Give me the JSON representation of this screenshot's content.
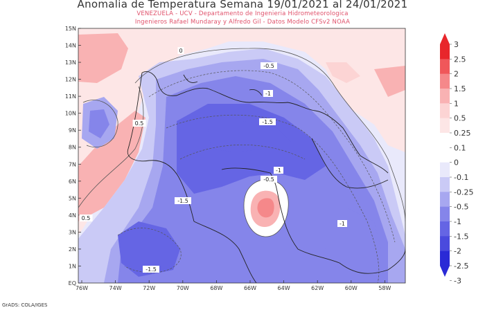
{
  "title": "Anomalia de Temperatura Semana 19/01/2021 al 24/01/2021",
  "subtitle1": "VENEZUELA - UCV - Departamento de Ingenieria Hidrometeorologica",
  "subtitle2": "Ingenieros Rafael Mundaray y Alfredo Gil - Datos Modelo CFSv2 NOAA",
  "credit": "GrADS: COLA/IGES",
  "lon_labels": [
    "76W",
    "74W",
    "72W",
    "70W",
    "68W",
    "66W",
    "64W",
    "62W",
    "60W",
    "58W"
  ],
  "lat_labels": [
    "15N",
    "14N",
    "13N",
    "12N",
    "11N",
    "10N",
    "9N",
    "8N",
    "7N",
    "6N",
    "5N",
    "4N",
    "3N",
    "2N",
    "1N",
    "EQ"
  ],
  "contour_labels": [
    "-0.5",
    "-1",
    "-1.5",
    "0.5",
    "-1",
    "-0.5",
    "-1.5",
    "-1",
    "0.5",
    "-1.5",
    "0"
  ],
  "colorbar": {
    "labels": [
      "3",
      "2.5",
      "2",
      "1.5",
      "1",
      "0.5",
      "0.25",
      "0.1",
      "0",
      "-0.1",
      "-0.25",
      "-0.5",
      "-1",
      "-1.5",
      "-2",
      "-2.5",
      "-3"
    ],
    "colors": [
      "#e8262b",
      "#f0575a",
      "#f5888a",
      "#f9b2b3",
      "#fcd4d4",
      "#fde6e6",
      "#ffffff",
      "#ffffff",
      "#e9e9fb",
      "#cacaf6",
      "#a7a7f0",
      "#8585ea",
      "#6565e4",
      "#4a4add",
      "#2a2ad6"
    ]
  }
}
